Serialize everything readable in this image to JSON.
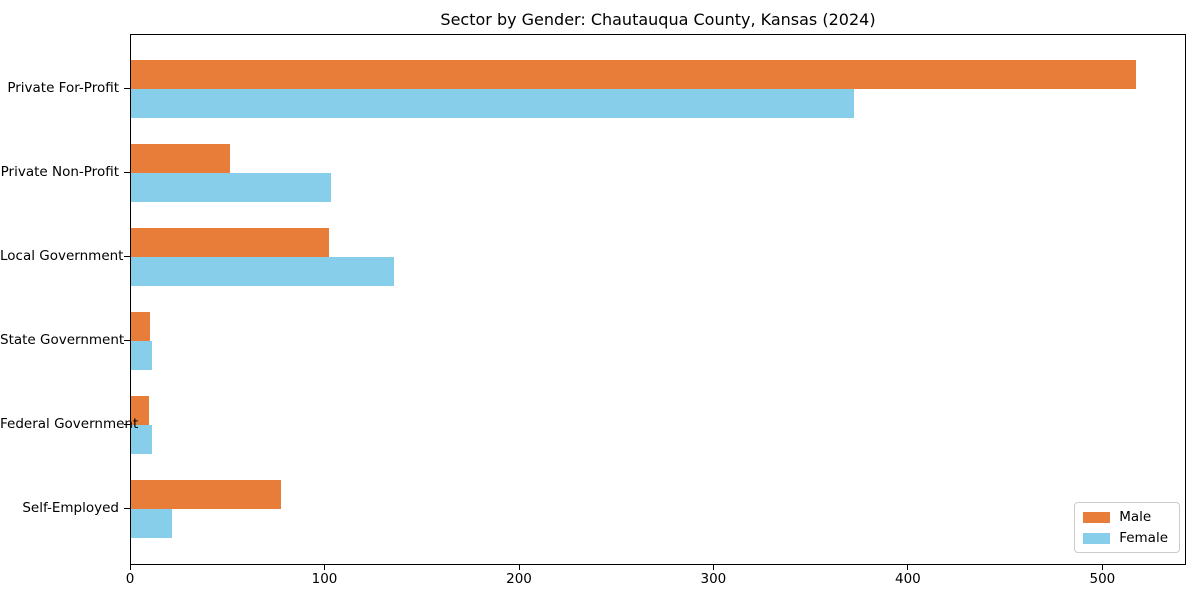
{
  "title": "Sector by Gender: Chautauqua County, Kansas (2024)",
  "colors": {
    "male": "#e87d3a",
    "female": "#87ceeb",
    "axis": "#000000",
    "legend_border": "#cccccc",
    "background": "#ffffff"
  },
  "chart_data": {
    "type": "bar",
    "orientation": "horizontal",
    "title": "Sector by Gender: Chautauqua County, Kansas (2024)",
    "xlabel": "",
    "ylabel": "",
    "categories": [
      "Private For-Profit",
      "Private Non-Profit",
      "Local Government",
      "State Government",
      "Federal Government",
      "Self-Employed"
    ],
    "series": [
      {
        "name": "Male",
        "color": "#e87d3a",
        "values": [
          517,
          51,
          102,
          10,
          9,
          77
        ]
      },
      {
        "name": "Female",
        "color": "#87ceeb",
        "values": [
          372,
          103,
          135,
          11,
          11,
          21
        ]
      }
    ],
    "xlim": [
      0,
      543
    ],
    "xticks": [
      0,
      100,
      200,
      300,
      400,
      500
    ],
    "grid": false,
    "legend_position": "lower right"
  }
}
